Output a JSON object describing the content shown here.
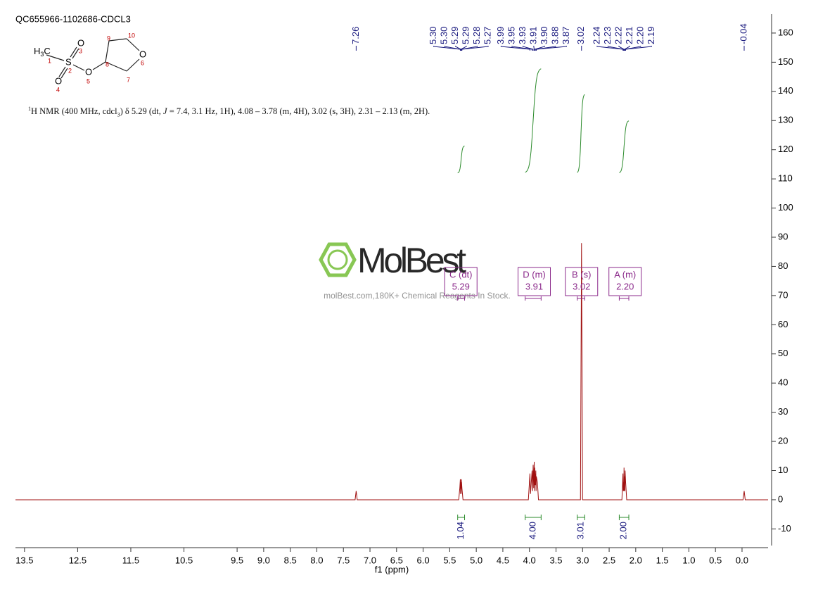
{
  "chart_data": {
    "type": "nmr",
    "title": "QC655966-1102686-CDCL3",
    "description": [
      "1",
      "H NMR (400 MHz, cdcl",
      "3",
      ") δ 5.29 (dt, ",
      "J",
      " = 7.4, 3.1 Hz, 1H), 4.08 – 3.78 (m, 4H), 3.02 (s, 3H), 2.31 – 2.13 (m, 2H)."
    ],
    "structure": {
      "atoms": [
        "H",
        "3",
        "C",
        "S",
        "O",
        "O",
        "O",
        "O"
      ],
      "numbers": [
        1,
        2,
        3,
        4,
        5,
        6,
        7,
        8,
        9,
        10
      ]
    },
    "watermark": {
      "brand": "MolBest",
      "tagline": "molBest.com,180K+ Chemical Reagents In Stock."
    },
    "x_label": "f1 (ppm)",
    "xlim": [
      13.67,
      -0.49
    ],
    "ylim": [
      -15.7,
      166.5
    ],
    "xticks": [
      13.5,
      12.5,
      11.5,
      10.5,
      9.5,
      {
        "value": 9,
        "label": "9.0"
      },
      8.5,
      {
        "value": 8,
        "label": "8.0"
      },
      7.5,
      {
        "value": 7,
        "label": "7.0"
      },
      6.5,
      {
        "value": 6,
        "label": "6.0"
      },
      5.5,
      {
        "value": 5,
        "label": "5.0"
      },
      4.5,
      {
        "value": 4,
        "label": "4.0"
      },
      3.5,
      {
        "value": 3,
        "label": "3.0"
      },
      2.5,
      {
        "value": 2,
        "label": "2.0"
      },
      1.5,
      {
        "value": 1,
        "label": "1.0"
      },
      0.5,
      {
        "value": 0,
        "label": "0.0"
      }
    ],
    "yticks": [
      -10,
      0,
      10,
      20,
      30,
      40,
      50,
      60,
      70,
      80,
      90,
      100,
      110,
      120,
      130,
      140,
      150,
      160
    ],
    "color": "#a01010",
    "x": [
      13.67,
      7.28,
      7.26,
      7.24,
      5.33,
      5.31,
      5.3,
      5.295,
      5.29,
      5.285,
      5.28,
      5.27,
      5.25,
      4.02,
      3.99,
      3.98,
      3.95,
      3.94,
      3.93,
      3.92,
      3.91,
      3.905,
      3.9,
      3.89,
      3.88,
      3.875,
      3.87,
      3.85,
      3.83,
      3.04,
      3.02,
      3.0,
      2.26,
      2.24,
      2.235,
      2.23,
      2.225,
      2.22,
      2.215,
      2.21,
      2.205,
      2.2,
      2.19,
      2.17,
      -0.02,
      -0.04,
      -0.06,
      -0.49
    ],
    "values": [
      0,
      0,
      3,
      0,
      0,
      4,
      7,
      2,
      6,
      2,
      7,
      4,
      0,
      0,
      9,
      2,
      10,
      3,
      12,
      4,
      13,
      3,
      11,
      5,
      10,
      3,
      8,
      6,
      0,
      0,
      88,
      0,
      0,
      9,
      3,
      6,
      3,
      11,
      3,
      8,
      3,
      10,
      6,
      0,
      0,
      3,
      0,
      0
    ],
    "peak_color": "#1c1c80",
    "peaks": [
      {
        "value": 7.26,
        "label": "7.26"
      },
      {
        "value": 5.3,
        "label": "5.30"
      },
      {
        "value": 5.3,
        "label": "5.30"
      },
      {
        "value": 5.29,
        "label": "5.29"
      },
      {
        "value": 5.29,
        "label": "5.29"
      },
      {
        "value": 5.28,
        "label": "5.28"
      },
      {
        "value": 5.27,
        "label": "5.27"
      },
      {
        "value": 3.99,
        "label": "3.99"
      },
      {
        "value": 3.95,
        "label": "3.95"
      },
      {
        "value": 3.93,
        "label": "3.93"
      },
      {
        "value": 3.91,
        "label": "3.91"
      },
      {
        "value": 3.9,
        "label": "3.90"
      },
      {
        "value": 3.88,
        "label": "3.88"
      },
      {
        "value": 3.87,
        "label": "3.87"
      },
      {
        "value": 3.02,
        "label": "3.02"
      },
      {
        "value": 2.24,
        "label": "2.24"
      },
      {
        "value": 2.23,
        "label": "2.23"
      },
      {
        "value": 2.22,
        "label": "2.22"
      },
      {
        "value": 2.21,
        "label": "2.21"
      },
      {
        "value": 2.2,
        "label": "2.20"
      },
      {
        "value": 2.19,
        "label": "2.19"
      },
      {
        "value": -0.04,
        "label": "-0.04"
      }
    ],
    "multiplet_color": "#8b2a8b",
    "multiplets": [
      {
        "name": "C (dt)",
        "shift": 5.29,
        "range": [
          5.35,
          5.22
        ]
      },
      {
        "name": "D (m)",
        "shift": 3.91,
        "range": [
          4.08,
          3.78
        ]
      },
      {
        "name": "B (s)",
        "shift": 3.02,
        "range": [
          3.1,
          2.96
        ]
      },
      {
        "name": "A (m)",
        "shift": {
          "value": 2.2,
          "label": "2.20"
        },
        "range": [
          2.31,
          2.13
        ]
      }
    ],
    "integral_color": "#2a8a2a",
    "integrals": [
      {
        "value": 1.04,
        "label": "1.04",
        "range": [
          5.35,
          5.22
        ]
      },
      {
        "value": 4,
        "label": "4.00",
        "range": [
          4.08,
          3.78
        ]
      },
      {
        "value": 3.01,
        "label": "3.01",
        "range": [
          3.1,
          2.96
        ]
      },
      {
        "value": 2,
        "label": "2.00",
        "range": [
          2.31,
          2.13
        ]
      }
    ]
  }
}
